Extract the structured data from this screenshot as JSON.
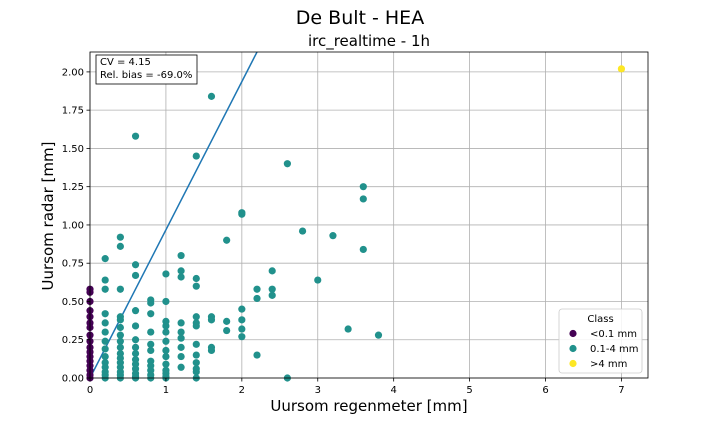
{
  "suptitle": "De Bult - HEA",
  "chart_data": {
    "type": "scatter",
    "title": "irc_realtime - 1h",
    "xlabel": "Uursom regenmeter [mm]",
    "ylabel": "Uursom radar [mm]",
    "xlim": [
      0,
      7.35
    ],
    "ylim": [
      0,
      2.13
    ],
    "x_ticks": [
      0,
      1,
      2,
      3,
      4,
      5,
      6,
      7
    ],
    "y_ticks": [
      0.0,
      0.25,
      0.5,
      0.75,
      1.0,
      1.25,
      1.5,
      1.75,
      2.0
    ],
    "x_tick_labels": [
      "0",
      "1",
      "2",
      "3",
      "4",
      "5",
      "6",
      "7"
    ],
    "y_tick_labels": [
      "0.00",
      "0.25",
      "0.50",
      "0.75",
      "1.00",
      "1.25",
      "1.50",
      "1.75",
      "2.00"
    ],
    "grid": true,
    "annotation": [
      "CV = 4.15",
      "Rel. bias = -69.0%"
    ],
    "fit_line": {
      "x": [
        0,
        2.2
      ],
      "y": [
        0,
        2.13
      ],
      "color": "#1f77b4"
    },
    "legend": {
      "title": "Class",
      "placement": "lower-right",
      "entries": [
        {
          "label": "<0.1 mm",
          "color": "#440154"
        },
        {
          "label": "0.1-4 mm",
          "color": "#21918c"
        },
        {
          "label": ">4 mm",
          "color": "#fde725"
        }
      ]
    },
    "series": [
      {
        "name": "<0.1 mm",
        "color": "#440154",
        "points": [
          [
            0,
            0.58
          ],
          [
            0,
            0.56
          ],
          [
            0,
            0.5
          ],
          [
            0,
            0.44
          ],
          [
            0,
            0.4
          ],
          [
            0,
            0.36
          ],
          [
            0,
            0.33
          ],
          [
            0,
            0.28
          ],
          [
            0,
            0.24
          ],
          [
            0,
            0.2
          ],
          [
            0,
            0.17
          ],
          [
            0,
            0.14
          ],
          [
            0,
            0.11
          ],
          [
            0,
            0.08
          ],
          [
            0,
            0.05
          ],
          [
            0,
            0.02
          ],
          [
            0,
            0
          ]
        ]
      },
      {
        "name": "0.1-4 mm",
        "color": "#21918c",
        "points": [
          [
            1.6,
            1.84
          ],
          [
            0.6,
            1.58
          ],
          [
            1.4,
            1.45
          ],
          [
            2.6,
            1.4
          ],
          [
            3.6,
            1.25
          ],
          [
            3.6,
            1.17
          ],
          [
            2.0,
            1.08
          ],
          [
            2.0,
            1.07
          ],
          [
            2.8,
            0.96
          ],
          [
            3.2,
            0.93
          ],
          [
            0.4,
            0.92
          ],
          [
            1.8,
            0.9
          ],
          [
            0.4,
            0.86
          ],
          [
            3.6,
            0.84
          ],
          [
            1.2,
            0.8
          ],
          [
            0.2,
            0.78
          ],
          [
            0.6,
            0.74
          ],
          [
            1.2,
            0.7
          ],
          [
            2.4,
            0.7
          ],
          [
            1.0,
            0.68
          ],
          [
            0.6,
            0.67
          ],
          [
            1.2,
            0.66
          ],
          [
            1.4,
            0.65
          ],
          [
            0.2,
            0.64
          ],
          [
            3.0,
            0.64
          ],
          [
            1.4,
            0.6
          ],
          [
            0.2,
            0.58
          ],
          [
            0.4,
            0.58
          ],
          [
            2.2,
            0.58
          ],
          [
            2.4,
            0.58
          ],
          [
            2.2,
            0.52
          ],
          [
            2.4,
            0.54
          ],
          [
            0.8,
            0.51
          ],
          [
            0.8,
            0.49
          ],
          [
            1.0,
            0.5
          ],
          [
            2.0,
            0.45
          ],
          [
            0.6,
            0.44
          ],
          [
            0.2,
            0.42
          ],
          [
            0.8,
            0.42
          ],
          [
            1.6,
            0.4
          ],
          [
            1.4,
            0.4
          ],
          [
            0.4,
            0.4
          ],
          [
            1.6,
            0.38
          ],
          [
            2.0,
            0.38
          ],
          [
            1.0,
            0.37
          ],
          [
            0.4,
            0.38
          ],
          [
            1.2,
            0.36
          ],
          [
            1.4,
            0.36
          ],
          [
            1.8,
            0.37
          ],
          [
            0.2,
            0.36
          ],
          [
            0.6,
            0.34
          ],
          [
            1.0,
            0.34
          ],
          [
            1.4,
            0.34
          ],
          [
            0.4,
            0.33
          ],
          [
            3.4,
            0.32
          ],
          [
            2.0,
            0.32
          ],
          [
            1.8,
            0.31
          ],
          [
            1.2,
            0.3
          ],
          [
            1.0,
            0.3
          ],
          [
            0.8,
            0.3
          ],
          [
            0.2,
            0.3
          ],
          [
            0.4,
            0.28
          ],
          [
            2.0,
            0.27
          ],
          [
            3.8,
            0.28
          ],
          [
            1.2,
            0.26
          ],
          [
            0.6,
            0.25
          ],
          [
            0.4,
            0.24
          ],
          [
            1.0,
            0.24
          ],
          [
            0.2,
            0.24
          ],
          [
            0.8,
            0.22
          ],
          [
            1.4,
            0.22
          ],
          [
            1.2,
            0.2
          ],
          [
            1.6,
            0.2
          ],
          [
            0.6,
            0.2
          ],
          [
            0.4,
            0.2
          ],
          [
            0.2,
            0.19
          ],
          [
            1.0,
            0.18
          ],
          [
            1.6,
            0.18
          ],
          [
            0.8,
            0.18
          ],
          [
            0.4,
            0.16
          ],
          [
            0.6,
            0.16
          ],
          [
            2.2,
            0.15
          ],
          [
            1.4,
            0.15
          ],
          [
            1.2,
            0.14
          ],
          [
            0.2,
            0.14
          ],
          [
            1.0,
            0.14
          ],
          [
            0.4,
            0.13
          ],
          [
            0.6,
            0.12
          ],
          [
            0.8,
            0.11
          ],
          [
            1.4,
            0.1
          ],
          [
            0.2,
            0.1
          ],
          [
            0.4,
            0.1
          ],
          [
            1.0,
            0.09
          ],
          [
            0.6,
            0.09
          ],
          [
            0.8,
            0.08
          ],
          [
            1.2,
            0.07
          ],
          [
            0.2,
            0.07
          ],
          [
            0.4,
            0.07
          ],
          [
            1.4,
            0.06
          ],
          [
            0.6,
            0.06
          ],
          [
            1.0,
            0.05
          ],
          [
            0.8,
            0.05
          ],
          [
            0.2,
            0.04
          ],
          [
            0.4,
            0.04
          ],
          [
            1.4,
            0.04
          ],
          [
            0.6,
            0.03
          ],
          [
            1.0,
            0.03
          ],
          [
            0.8,
            0.02
          ],
          [
            0.2,
            0.02
          ],
          [
            0.4,
            0.02
          ],
          [
            1.0,
            0.01
          ],
          [
            0.6,
            0.01
          ],
          [
            0.2,
            0
          ],
          [
            0.4,
            0
          ],
          [
            0.6,
            0
          ],
          [
            0.8,
            0
          ],
          [
            1.0,
            0
          ],
          [
            1.4,
            0
          ],
          [
            2.6,
            0
          ]
        ]
      },
      {
        "name": ">4 mm",
        "color": "#fde725",
        "points": [
          [
            7.0,
            2.02
          ]
        ]
      }
    ]
  }
}
